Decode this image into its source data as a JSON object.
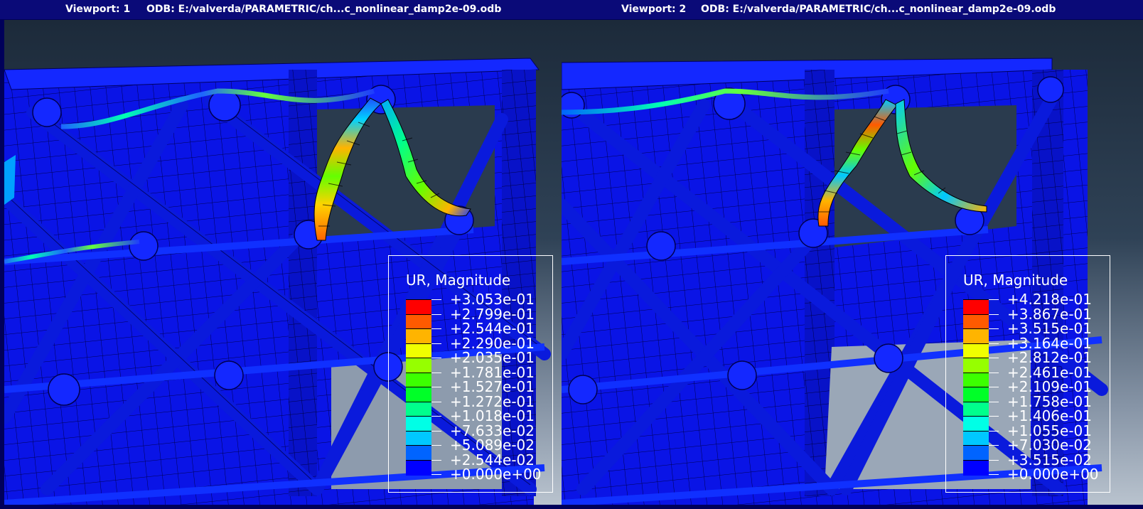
{
  "viewports": [
    {
      "title_left": "Viewport: 1",
      "title_right": "ODB: E:/valverda/PARAMETRIC/ch...c_nonlinear_damp2e-09.odb",
      "legend": {
        "title": "UR, Magnitude",
        "values": [
          "+3.053e-01",
          "+2.799e-01",
          "+2.544e-01",
          "+2.290e-01",
          "+2.035e-01",
          "+1.781e-01",
          "+1.527e-01",
          "+1.272e-01",
          "+1.018e-01",
          "+7.633e-02",
          "+5.089e-02",
          "+2.544e-02",
          "+0.000e+00"
        ]
      }
    },
    {
      "title_left": "Viewport: 2",
      "title_right": "ODB: E:/valverda/PARAMETRIC/ch...c_nonlinear_damp2e-09.odb",
      "legend": {
        "title": "UR, Magnitude",
        "values": [
          "+4.218e-01",
          "+3.867e-01",
          "+3.515e-01",
          "+3.164e-01",
          "+2.812e-01",
          "+2.461e-01",
          "+2.109e-01",
          "+1.758e-01",
          "+1.406e-01",
          "+1.055e-01",
          "+7.030e-02",
          "+3.515e-02",
          "+0.000e+00"
        ]
      }
    }
  ],
  "colormap": [
    "#ff0000",
    "#ff5a00",
    "#ffb400",
    "#f0ff00",
    "#96ff00",
    "#3cff00",
    "#00ff28",
    "#00ff8c",
    "#00ffe6",
    "#00c8ff",
    "#0064ff",
    "#0000ff"
  ]
}
